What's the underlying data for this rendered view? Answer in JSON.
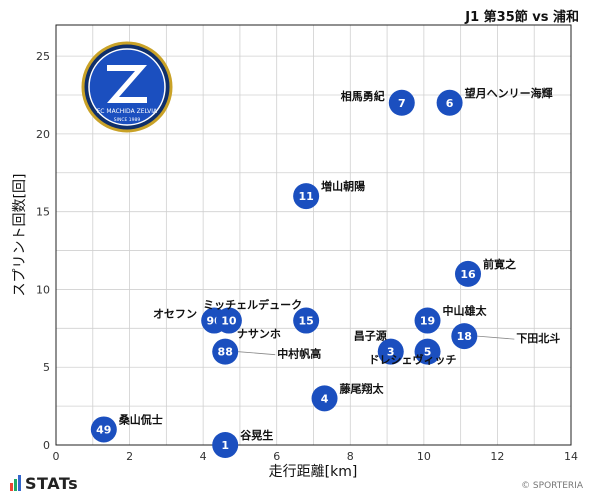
{
  "header": {
    "match": "J1 第35節 vs 浦和"
  },
  "footer": {
    "brand": "STATs",
    "copyright": "© SPORTERIA"
  },
  "logo": {
    "text": "FC MACHIDA ZELVIA",
    "sub": "SINCE 1989"
  },
  "colors": {
    "point": "#1b4fbf",
    "grid": "#d0d0d0",
    "leader": "#888888"
  },
  "chart_data": {
    "type": "scatter",
    "xlabel": "走行距離[km]",
    "ylabel": "スプリント回数[回]",
    "xlim": [
      0,
      14
    ],
    "ylim": [
      0,
      27
    ],
    "xticks": [
      0,
      2,
      4,
      6,
      8,
      10,
      12,
      14
    ],
    "yticks": [
      0,
      5,
      10,
      15,
      20,
      25
    ],
    "grid": true,
    "points": [
      {
        "number": "7",
        "name": "相馬勇紀",
        "x": 9.4,
        "y": 22,
        "label_pos": "left"
      },
      {
        "number": "6",
        "name": "望月ヘンリー海輝",
        "x": 10.7,
        "y": 22,
        "label_pos": "right"
      },
      {
        "number": "11",
        "name": "増山朝陽",
        "x": 6.8,
        "y": 16,
        "label_pos": "right"
      },
      {
        "number": "16",
        "name": "前寛之",
        "x": 11.2,
        "y": 11,
        "label_pos": "right"
      },
      {
        "number": "90",
        "name": "オセフン",
        "x": 4.3,
        "y": 8,
        "label_pos": "left"
      },
      {
        "number": "10",
        "name": "ナサンホ",
        "x": 4.7,
        "y": 8,
        "label_pos": "below-right"
      },
      {
        "number": "15",
        "name": "ミッチェルデューク",
        "x": 6.8,
        "y": 8,
        "label_pos": "above-left"
      },
      {
        "number": "19",
        "name": "中山雄太",
        "x": 10.1,
        "y": 8,
        "label_pos": "right"
      },
      {
        "number": "18",
        "name": "下田北斗",
        "x": 11.1,
        "y": 7,
        "label_pos": "leader-right"
      },
      {
        "number": "88",
        "name": "中村帆高",
        "x": 4.6,
        "y": 6,
        "label_pos": "leader-right"
      },
      {
        "number": "3",
        "name": "昌子源",
        "x": 9.1,
        "y": 6,
        "label_pos": "above-left"
      },
      {
        "number": "5",
        "name": "ドレシェヴィッチ",
        "x": 10.1,
        "y": 6,
        "label_pos": "below"
      },
      {
        "number": "4",
        "name": "藤尾翔太",
        "x": 7.3,
        "y": 3,
        "label_pos": "right"
      },
      {
        "number": "49",
        "name": "桑山侃士",
        "x": 1.3,
        "y": 1,
        "label_pos": "right"
      },
      {
        "number": "1",
        "name": "谷晃生",
        "x": 4.6,
        "y": 0,
        "label_pos": "right"
      }
    ]
  }
}
